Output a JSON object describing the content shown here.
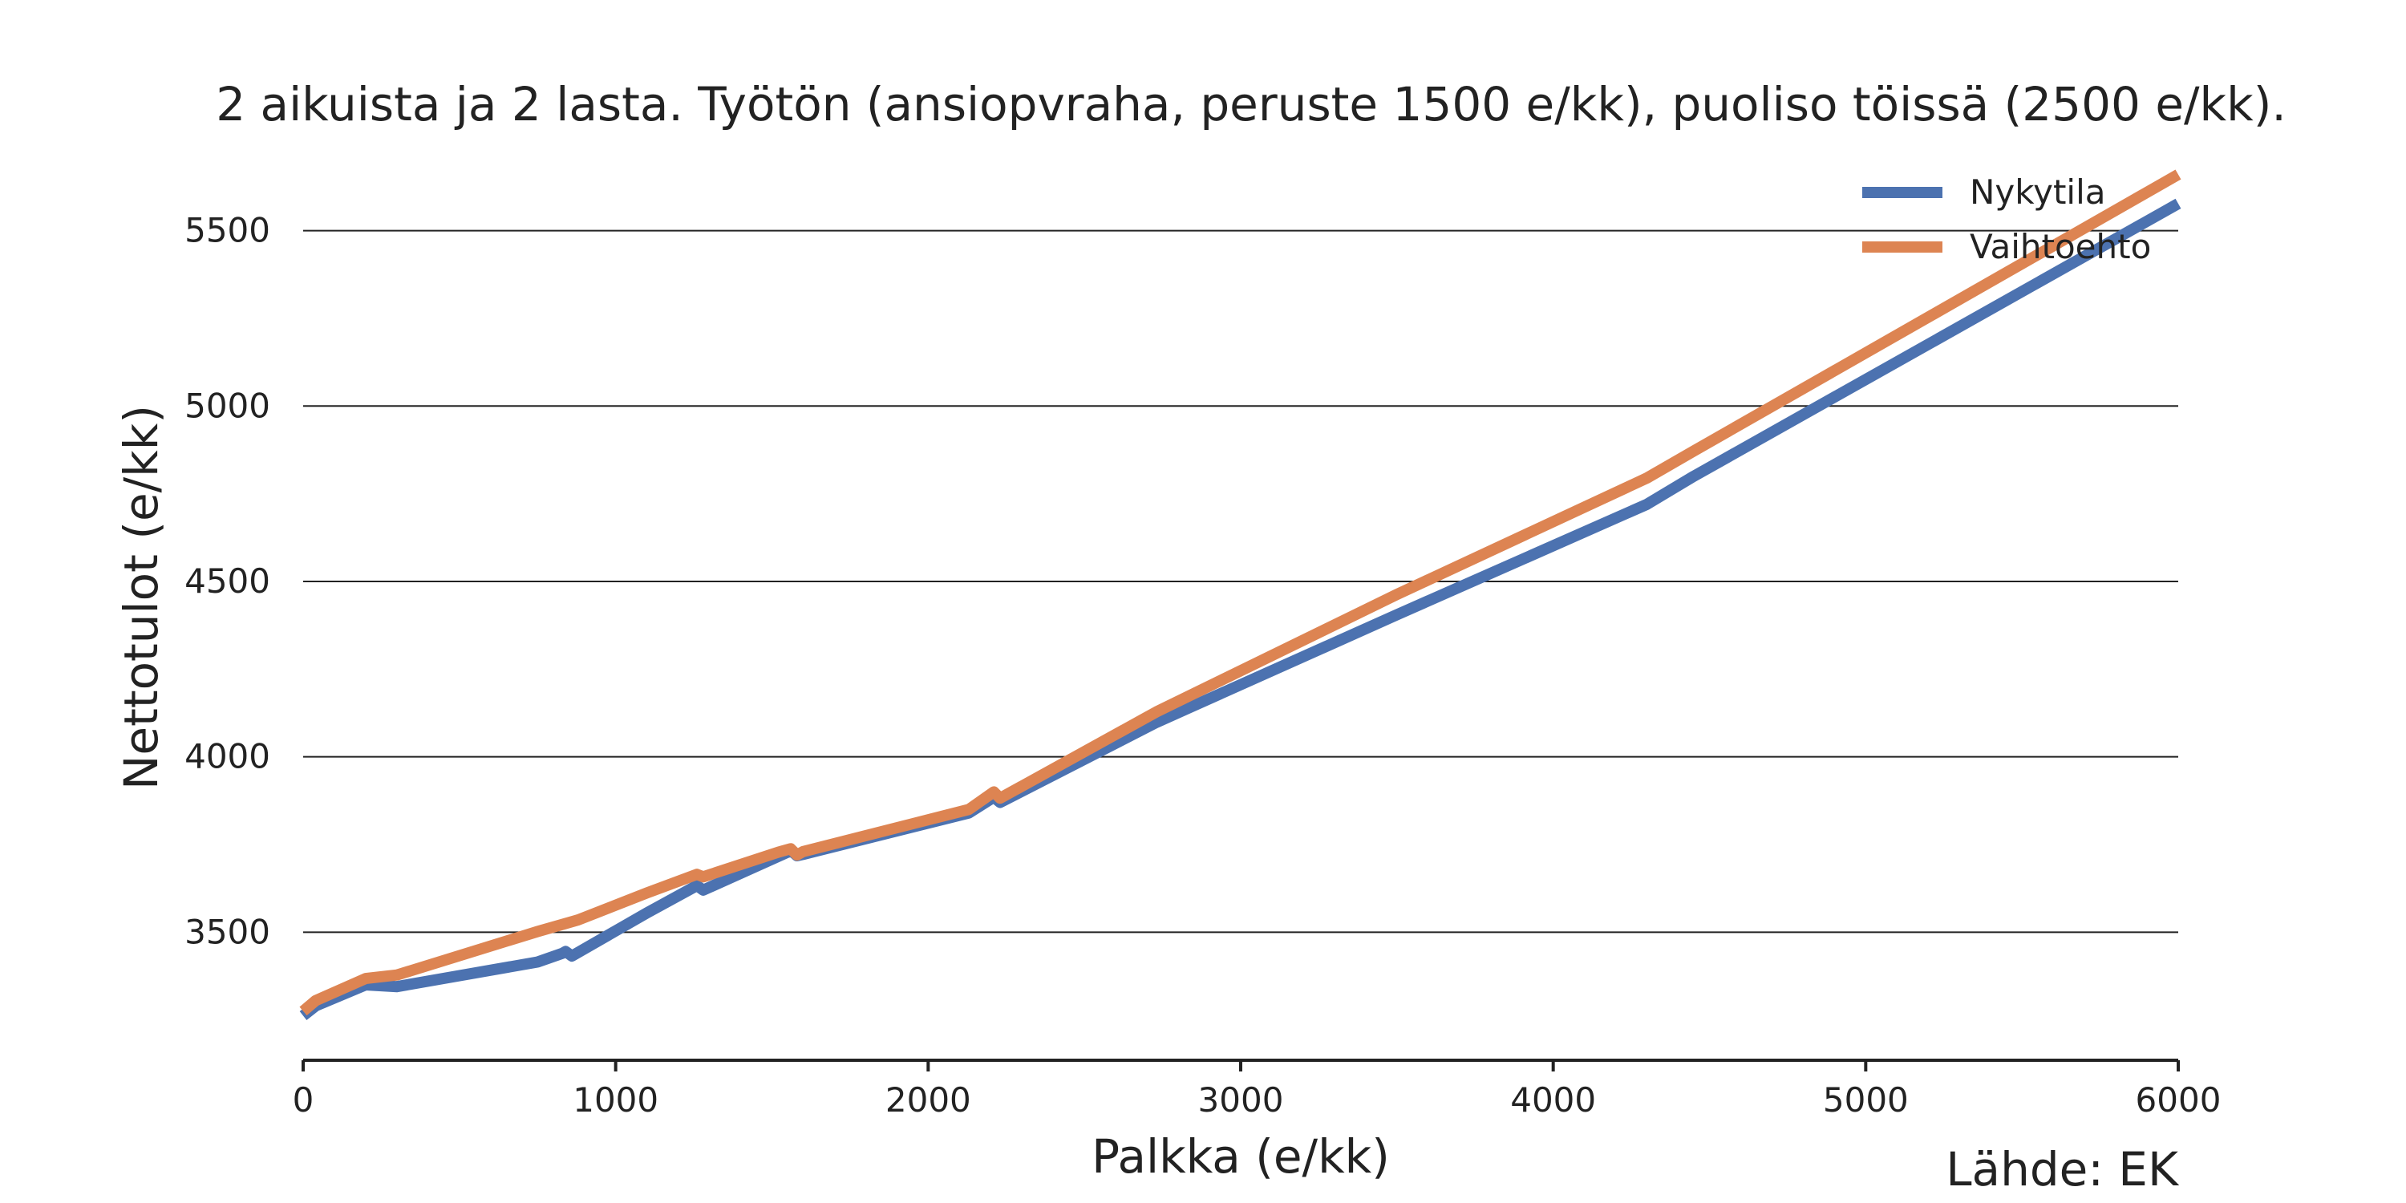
{
  "chart_data": {
    "type": "line",
    "title": "2 aikuista ja 2 lasta. Työtön (ansiopvraha, peruste 1500 e/kk), puoliso töissä (2500 e/kk).",
    "xlabel": "Palkka (e/kk)",
    "ylabel": "Nettotulot (e/kk)",
    "xlim": [
      0,
      6000
    ],
    "ylim": [
      3135,
      5650
    ],
    "xticks": [
      0,
      1000,
      2000,
      3000,
      4000,
      5000,
      6000
    ],
    "yticks": [
      3500,
      4000,
      4500,
      5000,
      5500
    ],
    "grid": "horizontal",
    "legend_position": "top-right",
    "source": "Lähde: EK",
    "series": [
      {
        "name": "Nykytila",
        "color": "#4c72b0",
        "x": [
          0,
          40,
          200,
          300,
          750,
          830,
          840,
          860,
          1100,
          1260,
          1280,
          1550,
          1565,
          1580,
          1600,
          2130,
          2210,
          2230,
          2730,
          3500,
          4300,
          4450,
          6000
        ],
        "y": [
          3262,
          3290,
          3350,
          3345,
          3415,
          3440,
          3445,
          3432,
          3555,
          3633,
          3620,
          3728,
          3730,
          3718,
          3722,
          3840,
          3885,
          3870,
          4098,
          4405,
          4720,
          4800,
          5577
        ]
      },
      {
        "name": "Vaihtoehto",
        "color": "#dd8452",
        "x": [
          0,
          40,
          200,
          300,
          750,
          880,
          1100,
          1260,
          1280,
          1520,
          1560,
          1580,
          1600,
          2130,
          2210,
          2230,
          2730,
          3500,
          4300,
          4450,
          6000
        ],
        "y": [
          3275,
          3305,
          3368,
          3378,
          3502,
          3535,
          3612,
          3665,
          3658,
          3728,
          3738,
          3720,
          3730,
          3850,
          3900,
          3882,
          4128,
          4463,
          4795,
          4872,
          5660
        ]
      }
    ]
  }
}
